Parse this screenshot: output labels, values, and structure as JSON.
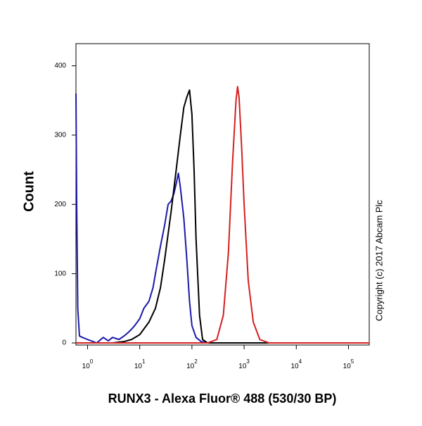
{
  "chart_data": {
    "type": "line",
    "x_label": "RUNX3 - Alexa Fluor® 488 (530/30 BP)",
    "y_label": "Count",
    "annotation": "Copyright (c) 2017 Abcam Plc",
    "log_x": true,
    "xlim": [
      0.6,
      250000
    ],
    "ylim": [
      -3,
      432
    ],
    "xticks": [
      {
        "value": 1,
        "label": "10",
        "exponent": "0"
      },
      {
        "value": 10,
        "label": "10",
        "exponent": "1"
      },
      {
        "value": 100,
        "label": "10",
        "exponent": "2"
      },
      {
        "value": 1000,
        "label": "10",
        "exponent": "3"
      },
      {
        "value": 10000,
        "label": "10",
        "exponent": "4"
      },
      {
        "value": 100000,
        "label": "10",
        "exponent": "5"
      }
    ],
    "yticks": [
      0,
      100,
      200,
      300,
      400
    ],
    "series": [
      {
        "color": "#1a1aa8",
        "x": [
          0.6,
          0.62,
          0.65,
          0.7,
          0.8,
          1,
          1.5,
          2,
          2.5,
          3,
          4,
          5,
          6,
          7,
          8,
          10,
          12,
          15,
          18,
          20,
          25,
          30,
          35,
          40,
          45,
          50,
          55,
          60,
          70,
          80,
          90,
          100,
          120,
          150,
          200,
          1000,
          250000
        ],
        "values": [
          360,
          200,
          50,
          10,
          8,
          5,
          0,
          8,
          3,
          8,
          5,
          10,
          15,
          20,
          25,
          35,
          50,
          60,
          80,
          100,
          140,
          170,
          200,
          205,
          215,
          230,
          245,
          225,
          180,
          120,
          60,
          25,
          8,
          2,
          0,
          0,
          0
        ]
      },
      {
        "color": "#000000",
        "x": [
          0.6,
          3,
          5,
          7,
          10,
          15,
          20,
          25,
          30,
          40,
          50,
          60,
          70,
          80,
          90,
          100,
          110,
          120,
          140,
          160,
          200,
          250000
        ],
        "values": [
          0,
          0,
          2,
          5,
          12,
          30,
          50,
          80,
          120,
          190,
          250,
          300,
          340,
          355,
          365,
          330,
          250,
          150,
          40,
          5,
          0,
          0
        ]
      },
      {
        "color": "#d42020",
        "x": [
          0.6,
          200,
          300,
          400,
          500,
          600,
          700,
          750,
          800,
          900,
          1000,
          1200,
          1500,
          2000,
          3000,
          250000
        ],
        "values": [
          0,
          0,
          5,
          40,
          130,
          260,
          350,
          370,
          355,
          280,
          200,
          90,
          30,
          5,
          0,
          0
        ]
      }
    ]
  }
}
